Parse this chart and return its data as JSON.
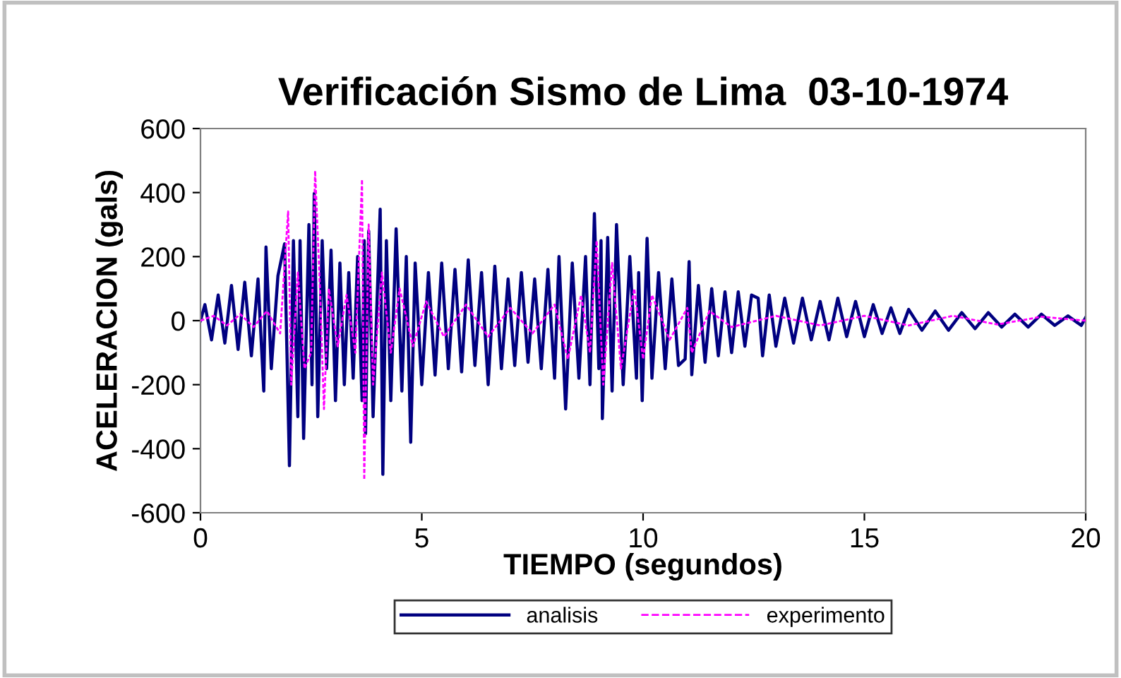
{
  "chart_data": {
    "type": "line",
    "title": "Verificación Sismo de Lima  03-10-1974",
    "xlabel": "TIEMPO (segundos)",
    "ylabel": "ACELERACION (gals)",
    "xlim": [
      0,
      20
    ],
    "xticks": [
      0,
      5,
      10,
      15,
      20
    ],
    "ylim": [
      -600,
      600
    ],
    "yticks": [
      -600,
      -400,
      -200,
      0,
      200,
      400,
      600
    ],
    "grid": false,
    "legend": "bottom",
    "series": [
      {
        "name": "analisis",
        "color": "#000080",
        "line_style": "solid",
        "x": [
          0,
          0.1,
          0.25,
          0.4,
          0.55,
          0.7,
          0.85,
          1.0,
          1.15,
          1.3,
          1.43,
          1.48,
          1.6,
          1.75,
          1.9,
          2.01,
          2.1,
          2.2,
          2.25,
          2.33,
          2.45,
          2.52,
          2.57,
          2.65,
          2.75,
          2.85,
          2.95,
          3.05,
          3.15,
          3.25,
          3.35,
          3.45,
          3.55,
          3.65,
          3.7,
          3.73,
          3.8,
          3.9,
          4.06,
          4.12,
          4.2,
          4.3,
          4.42,
          4.55,
          4.65,
          4.75,
          4.85,
          5.0,
          5.15,
          5.3,
          5.45,
          5.6,
          5.75,
          5.9,
          6.05,
          6.2,
          6.35,
          6.5,
          6.65,
          6.8,
          6.95,
          7.1,
          7.25,
          7.4,
          7.55,
          7.7,
          7.85,
          8.0,
          8.1,
          8.25,
          8.4,
          8.55,
          8.7,
          8.8,
          8.9,
          9.0,
          9.05,
          9.08,
          9.2,
          9.3,
          9.4,
          9.55,
          9.7,
          9.85,
          9.9,
          9.98,
          10.09,
          10.2,
          10.35,
          10.5,
          10.65,
          10.8,
          10.95,
          11.04,
          11.1,
          11.25,
          11.4,
          11.55,
          11.7,
          11.85,
          12.0,
          12.15,
          12.3,
          12.45,
          12.6,
          12.7,
          12.85,
          13.0,
          13.2,
          13.4,
          13.6,
          13.8,
          14.0,
          14.2,
          14.4,
          14.6,
          14.8,
          15.0,
          15.2,
          15.4,
          15.6,
          15.8,
          16.0,
          16.3,
          16.6,
          16.9,
          17.2,
          17.5,
          17.8,
          18.1,
          18.4,
          18.7,
          19.0,
          19.3,
          19.6,
          19.9,
          20.0
        ],
        "values": [
          0,
          50,
          -60,
          80,
          -70,
          110,
          -90,
          120,
          -110,
          130,
          -220,
          230,
          -150,
          140,
          240,
          -453,
          250,
          -300,
          250,
          -368,
          300,
          -200,
          397,
          -300,
          250,
          -150,
          220,
          -250,
          180,
          -200,
          150,
          -180,
          200,
          -250,
          250,
          -353,
          280,
          -300,
          348,
          -480,
          250,
          -250,
          287,
          -220,
          200,
          -380,
          180,
          -200,
          150,
          -170,
          180,
          -150,
          160,
          -160,
          190,
          -140,
          150,
          -200,
          170,
          -150,
          130,
          -140,
          150,
          -130,
          130,
          -150,
          160,
          -180,
          200,
          -276,
          180,
          -180,
          200,
          -200,
          334,
          -150,
          250,
          -306,
          260,
          -220,
          300,
          -200,
          200,
          -180,
          150,
          -250,
          257,
          -180,
          150,
          -150,
          130,
          -140,
          -120,
          184,
          -169,
          110,
          -130,
          100,
          -110,
          90,
          -100,
          90,
          -80,
          80,
          70,
          -110,
          80,
          -80,
          70,
          -70,
          70,
          -60,
          60,
          -60,
          70,
          -50,
          60,
          -50,
          50,
          -40,
          40,
          -40,
          35,
          -30,
          30,
          -30,
          25,
          -25,
          25,
          -20,
          20,
          -20,
          20,
          -15,
          15,
          -15,
          10
        ]
      },
      {
        "name": "experimento",
        "color": "#ff00ff",
        "line_style": "dashed",
        "x": [
          0,
          0.3,
          0.6,
          0.9,
          1.2,
          1.5,
          1.8,
          1.98,
          2.05,
          2.2,
          2.35,
          2.5,
          2.59,
          2.7,
          2.79,
          2.9,
          3.1,
          3.3,
          3.5,
          3.65,
          3.7,
          3.8,
          3.9,
          4.1,
          4.3,
          4.5,
          4.8,
          5.1,
          5.5,
          6.0,
          6.5,
          7.0,
          7.5,
          8.0,
          8.3,
          8.6,
          8.8,
          8.95,
          9.1,
          9.3,
          9.5,
          9.8,
          10.0,
          10.2,
          10.6,
          11.0,
          11.1,
          11.5,
          12.0,
          13.0,
          14.0,
          15.0,
          16.0,
          17.0,
          18.0,
          19.0,
          20.0
        ],
        "values": [
          0,
          15,
          -15,
          20,
          -20,
          30,
          -40,
          341,
          -200,
          150,
          -150,
          -100,
          468,
          100,
          -276,
          100,
          -80,
          80,
          -100,
          441,
          -497,
          300,
          -200,
          150,
          -100,
          100,
          -80,
          60,
          -50,
          50,
          -50,
          40,
          -40,
          50,
          -120,
          80,
          -100,
          250,
          -200,
          180,
          -150,
          100,
          -120,
          80,
          -60,
          40,
          -100,
          30,
          -20,
          15,
          -15,
          15,
          -15,
          15,
          -12,
          12,
          0
        ]
      }
    ]
  }
}
